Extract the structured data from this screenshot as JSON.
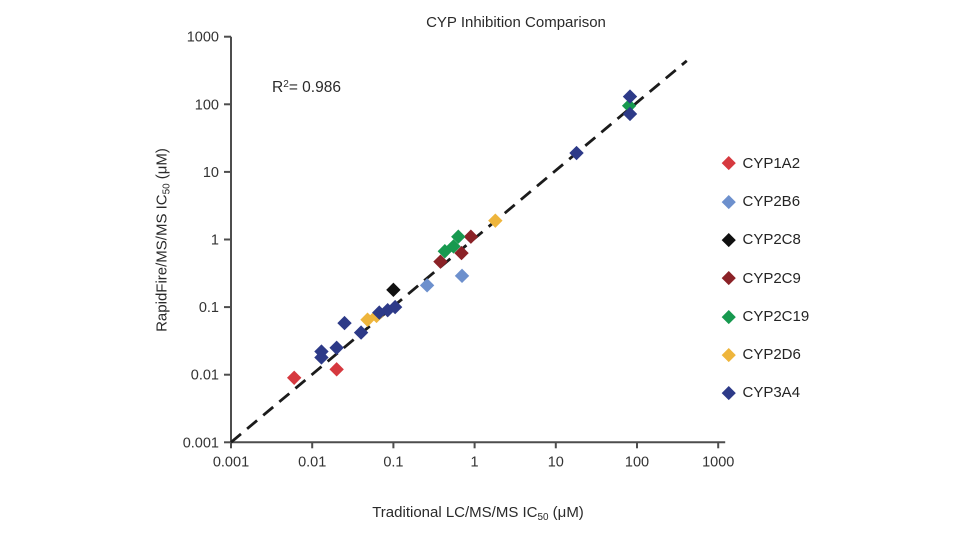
{
  "chart_data": {
    "type": "scatter",
    "title": "CYP Inhibition Comparison",
    "annotation": {
      "base": "R",
      "sup": "2",
      "rest": "= 0.986"
    },
    "r_squared": 0.986,
    "xlabel_parts": {
      "pre": "Traditional LC/MS/MS IC",
      "sub": "50",
      "post": " (μM)"
    },
    "ylabel_parts": {
      "pre": "RapidFire/MS/MS IC",
      "sub": "50",
      "post": " (μM)"
    },
    "x_scale": "log",
    "y_scale": "log",
    "xlim": [
      0.001,
      1000
    ],
    "ylim": [
      0.001,
      1000
    ],
    "x_ticks": [
      0.001,
      0.01,
      0.1,
      1,
      10,
      100,
      1000
    ],
    "y_ticks": [
      0.001,
      0.01,
      0.1,
      1,
      10,
      100,
      1000
    ],
    "x_tick_labels": [
      "0.001",
      "0.01",
      "0.1",
      "1",
      "10",
      "100",
      "1000"
    ],
    "y_tick_labels": [
      "0.001",
      "0.01",
      "0.1",
      "1",
      "10",
      "100",
      "1000"
    ],
    "grid": false,
    "marker": "diamond",
    "legend_position": "right",
    "axis_color": "#4d4d4d",
    "trend_line": {
      "style": "dashed",
      "color": "#1b1b1b",
      "from": [
        0.001,
        0.001
      ],
      "to": [
        410,
        440
      ]
    },
    "series": [
      {
        "name": "CYP1A2",
        "color": "#D6393F",
        "points": [
          [
            0.006,
            0.009
          ],
          [
            0.02,
            0.012
          ]
        ]
      },
      {
        "name": "CYP2B6",
        "color": "#6D90CD",
        "points": [
          [
            0.26,
            0.21
          ],
          [
            0.7,
            0.29
          ]
        ]
      },
      {
        "name": "CYP2C8",
        "color": "#101010",
        "points": [
          [
            0.1,
            0.18
          ]
        ]
      },
      {
        "name": "CYP2C9",
        "color": "#8B2227",
        "points": [
          [
            0.38,
            0.47
          ],
          [
            0.69,
            0.63
          ],
          [
            0.9,
            1.1
          ]
        ]
      },
      {
        "name": "CYP2C19",
        "color": "#17994F",
        "points": [
          [
            0.43,
            0.67
          ],
          [
            0.55,
            0.79
          ],
          [
            0.63,
            1.1
          ],
          [
            80,
            95
          ]
        ]
      },
      {
        "name": "CYP2D6",
        "color": "#EEB53C",
        "points": [
          [
            0.048,
            0.065
          ],
          [
            0.062,
            0.074
          ],
          [
            1.8,
            1.9
          ]
        ]
      },
      {
        "name": "CYP3A4",
        "color": "#2D3A88",
        "points": [
          [
            0.013,
            0.022
          ],
          [
            0.013,
            0.018
          ],
          [
            0.02,
            0.025
          ],
          [
            0.025,
            0.058
          ],
          [
            0.04,
            0.042
          ],
          [
            0.067,
            0.083
          ],
          [
            0.085,
            0.09
          ],
          [
            0.105,
            0.1
          ],
          [
            18,
            19
          ],
          [
            82,
            130
          ],
          [
            82,
            72
          ]
        ]
      }
    ]
  }
}
